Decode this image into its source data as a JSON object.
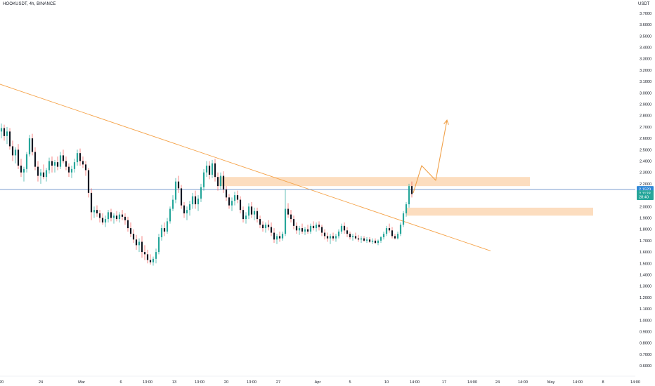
{
  "header": {
    "symbol": "HOOKUSDT, 4h, BINANCE",
    "currency": "USDT"
  },
  "colors": {
    "up_candle": "#26a69a",
    "down_candle": "#ef5350",
    "body_dark": "#131722",
    "trendline": "#f5a34a",
    "zone_fill": "#fcd9b8",
    "arrow": "#f0a048",
    "price_line": "#4f7ebf",
    "price_tag": "#2f88d6",
    "countdown_tag": "#26a69a"
  },
  "chart_data": {
    "type": "candlestick",
    "title": "HOOKUSDT, 4h, BINANCE",
    "y_unit": "USDT",
    "ylim": [
      0.45,
      3.85
    ],
    "y_ticks": [
      "0.5000",
      "0.6000",
      "0.7000",
      "0.8000",
      "0.9000",
      "1.0000",
      "1.1000",
      "1.2000",
      "1.3000",
      "1.4000",
      "1.5000",
      "1.6000",
      "1.7000",
      "1.8000",
      "1.9000",
      "2.0000",
      "2.1000",
      "2.2000",
      "2.3000",
      "2.4000",
      "2.5000",
      "2.6000",
      "2.7000",
      "2.8000",
      "2.9000",
      "3.0000",
      "3.1000",
      "3.2000",
      "3.3000",
      "3.4000",
      "3.5000",
      "3.6000",
      "3.7000",
      "3.8000"
    ],
    "x_ticks": [
      {
        "label": "20",
        "x": -8
      },
      {
        "label": "24",
        "x": 20
      },
      {
        "label": "Mar",
        "x": 49
      },
      {
        "label": "6",
        "x": 77
      },
      {
        "label": "13:00",
        "x": 96
      },
      {
        "label": "13",
        "x": 115
      },
      {
        "label": "13:00",
        "x": 133
      },
      {
        "label": "20",
        "x": 152
      },
      {
        "label": "13:00",
        "x": 170
      },
      {
        "label": "27",
        "x": 189
      },
      {
        "label": "Apr",
        "x": 217
      },
      {
        "label": "5",
        "x": 240
      },
      {
        "label": "10",
        "x": 266
      },
      {
        "label": "14:00",
        "x": 286
      },
      {
        "label": "17",
        "x": 307
      },
      {
        "label": "14:00",
        "x": 327
      },
      {
        "label": "24",
        "x": 345
      },
      {
        "label": "14:00",
        "x": 363
      },
      {
        "label": "May",
        "x": 383
      },
      {
        "label": "14:00",
        "x": 402
      },
      {
        "label": "8",
        "x": 420
      },
      {
        "label": "14:00",
        "x": 443
      },
      {
        "label": "15",
        "x": 459
      }
    ],
    "x_range": [
      -10,
      470
    ],
    "candles": [
      {
        "x": -8,
        "o": 2.66,
        "h": 2.73,
        "l": 2.6,
        "c": 2.69
      },
      {
        "x": -6,
        "o": 2.69,
        "h": 2.72,
        "l": 2.58,
        "c": 2.62
      },
      {
        "x": -4,
        "o": 2.62,
        "h": 2.7,
        "l": 2.55,
        "c": 2.66
      },
      {
        "x": -2,
        "o": 2.66,
        "h": 2.69,
        "l": 2.5,
        "c": 2.53
      },
      {
        "x": 0,
        "o": 2.53,
        "h": 2.58,
        "l": 2.4,
        "c": 2.45
      },
      {
        "x": 2,
        "o": 2.45,
        "h": 2.52,
        "l": 2.38,
        "c": 2.5
      },
      {
        "x": 4,
        "o": 2.5,
        "h": 2.55,
        "l": 2.33,
        "c": 2.36
      },
      {
        "x": 6,
        "o": 2.36,
        "h": 2.42,
        "l": 2.26,
        "c": 2.3
      },
      {
        "x": 8,
        "o": 2.3,
        "h": 2.35,
        "l": 2.22,
        "c": 2.33
      },
      {
        "x": 10,
        "o": 2.33,
        "h": 2.48,
        "l": 2.3,
        "c": 2.46
      },
      {
        "x": 12,
        "o": 2.46,
        "h": 2.63,
        "l": 2.44,
        "c": 2.6
      },
      {
        "x": 14,
        "o": 2.6,
        "h": 2.64,
        "l": 2.45,
        "c": 2.48
      },
      {
        "x": 16,
        "o": 2.48,
        "h": 2.52,
        "l": 2.32,
        "c": 2.35
      },
      {
        "x": 18,
        "o": 2.35,
        "h": 2.4,
        "l": 2.22,
        "c": 2.27
      },
      {
        "x": 20,
        "o": 2.27,
        "h": 2.33,
        "l": 2.2,
        "c": 2.3
      },
      {
        "x": 22,
        "o": 2.3,
        "h": 2.37,
        "l": 2.24,
        "c": 2.26
      },
      {
        "x": 24,
        "o": 2.26,
        "h": 2.34,
        "l": 2.22,
        "c": 2.32
      },
      {
        "x": 26,
        "o": 2.32,
        "h": 2.43,
        "l": 2.29,
        "c": 2.4
      },
      {
        "x": 28,
        "o": 2.4,
        "h": 2.44,
        "l": 2.3,
        "c": 2.36
      },
      {
        "x": 30,
        "o": 2.36,
        "h": 2.41,
        "l": 2.3,
        "c": 2.39
      },
      {
        "x": 32,
        "o": 2.39,
        "h": 2.44,
        "l": 2.32,
        "c": 2.35
      },
      {
        "x": 34,
        "o": 2.35,
        "h": 2.48,
        "l": 2.33,
        "c": 2.45
      },
      {
        "x": 36,
        "o": 2.45,
        "h": 2.5,
        "l": 2.38,
        "c": 2.4
      },
      {
        "x": 38,
        "o": 2.4,
        "h": 2.44,
        "l": 2.32,
        "c": 2.35
      },
      {
        "x": 40,
        "o": 2.35,
        "h": 2.38,
        "l": 2.26,
        "c": 2.3
      },
      {
        "x": 42,
        "o": 2.3,
        "h": 2.36,
        "l": 2.25,
        "c": 2.33
      },
      {
        "x": 44,
        "o": 2.33,
        "h": 2.42,
        "l": 2.3,
        "c": 2.39
      },
      {
        "x": 46,
        "o": 2.39,
        "h": 2.5,
        "l": 2.36,
        "c": 2.47
      },
      {
        "x": 48,
        "o": 2.47,
        "h": 2.51,
        "l": 2.36,
        "c": 2.4
      },
      {
        "x": 50,
        "o": 2.4,
        "h": 2.44,
        "l": 2.34,
        "c": 2.37
      },
      {
        "x": 52,
        "o": 2.37,
        "h": 2.4,
        "l": 2.27,
        "c": 2.32
      },
      {
        "x": 54,
        "o": 2.32,
        "h": 2.34,
        "l": 2.08,
        "c": 2.12
      },
      {
        "x": 56,
        "o": 2.12,
        "h": 2.16,
        "l": 1.88,
        "c": 1.95
      },
      {
        "x": 58,
        "o": 1.95,
        "h": 2.0,
        "l": 1.9,
        "c": 1.97
      },
      {
        "x": 60,
        "o": 1.97,
        "h": 2.01,
        "l": 1.91,
        "c": 1.94
      },
      {
        "x": 62,
        "o": 1.94,
        "h": 1.97,
        "l": 1.86,
        "c": 1.9
      },
      {
        "x": 64,
        "o": 1.9,
        "h": 1.94,
        "l": 1.84,
        "c": 1.86
      },
      {
        "x": 66,
        "o": 1.86,
        "h": 1.92,
        "l": 1.82,
        "c": 1.89
      },
      {
        "x": 68,
        "o": 1.89,
        "h": 1.97,
        "l": 1.86,
        "c": 1.95
      },
      {
        "x": 70,
        "o": 1.95,
        "h": 1.98,
        "l": 1.87,
        "c": 1.9
      },
      {
        "x": 72,
        "o": 1.9,
        "h": 1.94,
        "l": 1.85,
        "c": 1.92
      },
      {
        "x": 74,
        "o": 1.92,
        "h": 1.96,
        "l": 1.87,
        "c": 1.89
      },
      {
        "x": 76,
        "o": 1.89,
        "h": 1.95,
        "l": 1.86,
        "c": 1.93
      },
      {
        "x": 78,
        "o": 1.93,
        "h": 1.97,
        "l": 1.88,
        "c": 1.91
      },
      {
        "x": 80,
        "o": 1.91,
        "h": 1.94,
        "l": 1.84,
        "c": 1.88
      },
      {
        "x": 82,
        "o": 1.88,
        "h": 1.91,
        "l": 1.78,
        "c": 1.81
      },
      {
        "x": 84,
        "o": 1.81,
        "h": 1.86,
        "l": 1.73,
        "c": 1.76
      },
      {
        "x": 86,
        "o": 1.76,
        "h": 1.8,
        "l": 1.68,
        "c": 1.71
      },
      {
        "x": 88,
        "o": 1.71,
        "h": 1.75,
        "l": 1.62,
        "c": 1.66
      },
      {
        "x": 90,
        "o": 1.66,
        "h": 1.72,
        "l": 1.6,
        "c": 1.69
      },
      {
        "x": 92,
        "o": 1.69,
        "h": 1.74,
        "l": 1.55,
        "c": 1.6
      },
      {
        "x": 94,
        "o": 1.6,
        "h": 1.66,
        "l": 1.53,
        "c": 1.58
      },
      {
        "x": 96,
        "o": 1.58,
        "h": 1.62,
        "l": 1.5,
        "c": 1.53
      },
      {
        "x": 98,
        "o": 1.53,
        "h": 1.58,
        "l": 1.49,
        "c": 1.51
      },
      {
        "x": 100,
        "o": 1.51,
        "h": 1.56,
        "l": 1.48,
        "c": 1.54
      },
      {
        "x": 102,
        "o": 1.54,
        "h": 1.63,
        "l": 1.5,
        "c": 1.6
      },
      {
        "x": 104,
        "o": 1.6,
        "h": 1.76,
        "l": 1.58,
        "c": 1.73
      },
      {
        "x": 106,
        "o": 1.73,
        "h": 1.84,
        "l": 1.7,
        "c": 1.81
      },
      {
        "x": 108,
        "o": 1.81,
        "h": 1.86,
        "l": 1.74,
        "c": 1.78
      },
      {
        "x": 110,
        "o": 1.78,
        "h": 1.9,
        "l": 1.76,
        "c": 1.87
      },
      {
        "x": 112,
        "o": 1.87,
        "h": 2.0,
        "l": 1.85,
        "c": 1.98
      },
      {
        "x": 114,
        "o": 1.98,
        "h": 2.1,
        "l": 1.96,
        "c": 2.06
      },
      {
        "x": 116,
        "o": 2.06,
        "h": 2.25,
        "l": 2.03,
        "c": 2.22
      },
      {
        "x": 118,
        "o": 2.22,
        "h": 2.27,
        "l": 2.12,
        "c": 2.16
      },
      {
        "x": 120,
        "o": 2.16,
        "h": 2.19,
        "l": 1.98,
        "c": 2.01
      },
      {
        "x": 122,
        "o": 2.01,
        "h": 2.04,
        "l": 1.9,
        "c": 1.94
      },
      {
        "x": 124,
        "o": 1.94,
        "h": 2.0,
        "l": 1.88,
        "c": 1.97
      },
      {
        "x": 126,
        "o": 1.97,
        "h": 2.05,
        "l": 1.92,
        "c": 2.02
      },
      {
        "x": 128,
        "o": 2.02,
        "h": 2.12,
        "l": 1.98,
        "c": 2.09
      },
      {
        "x": 130,
        "o": 2.09,
        "h": 2.14,
        "l": 1.98,
        "c": 2.02
      },
      {
        "x": 132,
        "o": 2.02,
        "h": 2.1,
        "l": 1.96,
        "c": 2.07
      },
      {
        "x": 134,
        "o": 2.07,
        "h": 2.2,
        "l": 2.04,
        "c": 2.17
      },
      {
        "x": 136,
        "o": 2.17,
        "h": 2.33,
        "l": 2.14,
        "c": 2.3
      },
      {
        "x": 138,
        "o": 2.3,
        "h": 2.4,
        "l": 2.26,
        "c": 2.36
      },
      {
        "x": 140,
        "o": 2.36,
        "h": 2.4,
        "l": 2.24,
        "c": 2.28
      },
      {
        "x": 142,
        "o": 2.28,
        "h": 2.41,
        "l": 2.25,
        "c": 2.38
      },
      {
        "x": 144,
        "o": 2.38,
        "h": 2.42,
        "l": 2.22,
        "c": 2.26
      },
      {
        "x": 146,
        "o": 2.26,
        "h": 2.3,
        "l": 2.14,
        "c": 2.18
      },
      {
        "x": 148,
        "o": 2.18,
        "h": 2.3,
        "l": 2.15,
        "c": 2.27
      },
      {
        "x": 150,
        "o": 2.27,
        "h": 2.31,
        "l": 2.12,
        "c": 2.15
      },
      {
        "x": 152,
        "o": 2.15,
        "h": 2.18,
        "l": 2.05,
        "c": 2.08
      },
      {
        "x": 154,
        "o": 2.08,
        "h": 2.11,
        "l": 1.98,
        "c": 2.01
      },
      {
        "x": 156,
        "o": 2.01,
        "h": 2.08,
        "l": 1.96,
        "c": 2.05
      },
      {
        "x": 158,
        "o": 2.05,
        "h": 2.13,
        "l": 2.01,
        "c": 2.1
      },
      {
        "x": 160,
        "o": 2.1,
        "h": 2.14,
        "l": 2.03,
        "c": 2.06
      },
      {
        "x": 162,
        "o": 2.06,
        "h": 2.09,
        "l": 1.94,
        "c": 1.97
      },
      {
        "x": 164,
        "o": 1.97,
        "h": 2.0,
        "l": 1.86,
        "c": 1.89
      },
      {
        "x": 166,
        "o": 1.89,
        "h": 1.95,
        "l": 1.85,
        "c": 1.92
      },
      {
        "x": 168,
        "o": 1.92,
        "h": 2.03,
        "l": 1.89,
        "c": 2.0
      },
      {
        "x": 170,
        "o": 2.0,
        "h": 2.04,
        "l": 1.9,
        "c": 1.93
      },
      {
        "x": 172,
        "o": 1.93,
        "h": 1.99,
        "l": 1.88,
        "c": 1.96
      },
      {
        "x": 174,
        "o": 1.96,
        "h": 1.99,
        "l": 1.86,
        "c": 1.89
      },
      {
        "x": 176,
        "o": 1.89,
        "h": 1.92,
        "l": 1.81,
        "c": 1.84
      },
      {
        "x": 178,
        "o": 1.84,
        "h": 1.87,
        "l": 1.78,
        "c": 1.81
      },
      {
        "x": 180,
        "o": 1.81,
        "h": 1.86,
        "l": 1.77,
        "c": 1.84
      },
      {
        "x": 182,
        "o": 1.84,
        "h": 1.88,
        "l": 1.79,
        "c": 1.82
      },
      {
        "x": 184,
        "o": 1.82,
        "h": 1.86,
        "l": 1.74,
        "c": 1.77
      },
      {
        "x": 186,
        "o": 1.77,
        "h": 1.81,
        "l": 1.68,
        "c": 1.71
      },
      {
        "x": 188,
        "o": 1.71,
        "h": 1.76,
        "l": 1.67,
        "c": 1.74
      },
      {
        "x": 190,
        "o": 1.74,
        "h": 1.78,
        "l": 1.69,
        "c": 1.72
      },
      {
        "x": 192,
        "o": 1.72,
        "h": 1.78,
        "l": 1.7,
        "c": 1.76
      },
      {
        "x": 194,
        "o": 1.76,
        "h": 2.15,
        "l": 1.74,
        "c": 1.98
      },
      {
        "x": 196,
        "o": 1.98,
        "h": 2.03,
        "l": 1.9,
        "c": 1.93
      },
      {
        "x": 198,
        "o": 1.93,
        "h": 1.97,
        "l": 1.86,
        "c": 1.89
      },
      {
        "x": 200,
        "o": 1.89,
        "h": 1.92,
        "l": 1.8,
        "c": 1.83
      },
      {
        "x": 202,
        "o": 1.83,
        "h": 1.86,
        "l": 1.76,
        "c": 1.79
      },
      {
        "x": 204,
        "o": 1.79,
        "h": 1.83,
        "l": 1.75,
        "c": 1.81
      },
      {
        "x": 206,
        "o": 1.81,
        "h": 1.85,
        "l": 1.76,
        "c": 1.78
      },
      {
        "x": 208,
        "o": 1.78,
        "h": 1.82,
        "l": 1.75,
        "c": 1.8
      },
      {
        "x": 210,
        "o": 1.8,
        "h": 1.84,
        "l": 1.76,
        "c": 1.78
      },
      {
        "x": 212,
        "o": 1.78,
        "h": 1.85,
        "l": 1.76,
        "c": 1.83
      },
      {
        "x": 214,
        "o": 1.83,
        "h": 1.87,
        "l": 1.79,
        "c": 1.81
      },
      {
        "x": 216,
        "o": 1.81,
        "h": 1.86,
        "l": 1.78,
        "c": 1.84
      },
      {
        "x": 218,
        "o": 1.84,
        "h": 1.87,
        "l": 1.79,
        "c": 1.82
      },
      {
        "x": 220,
        "o": 1.82,
        "h": 1.84,
        "l": 1.74,
        "c": 1.77
      },
      {
        "x": 222,
        "o": 1.77,
        "h": 1.8,
        "l": 1.71,
        "c": 1.74
      },
      {
        "x": 224,
        "o": 1.74,
        "h": 1.77,
        "l": 1.69,
        "c": 1.72
      },
      {
        "x": 226,
        "o": 1.72,
        "h": 1.76,
        "l": 1.67,
        "c": 1.74
      },
      {
        "x": 228,
        "o": 1.74,
        "h": 1.77,
        "l": 1.7,
        "c": 1.72
      },
      {
        "x": 230,
        "o": 1.72,
        "h": 1.76,
        "l": 1.69,
        "c": 1.74
      },
      {
        "x": 232,
        "o": 1.74,
        "h": 1.8,
        "l": 1.72,
        "c": 1.78
      },
      {
        "x": 234,
        "o": 1.78,
        "h": 1.85,
        "l": 1.76,
        "c": 1.83
      },
      {
        "x": 236,
        "o": 1.83,
        "h": 1.86,
        "l": 1.76,
        "c": 1.79
      },
      {
        "x": 238,
        "o": 1.79,
        "h": 1.82,
        "l": 1.73,
        "c": 1.76
      },
      {
        "x": 240,
        "o": 1.76,
        "h": 1.78,
        "l": 1.71,
        "c": 1.73
      },
      {
        "x": 242,
        "o": 1.73,
        "h": 1.76,
        "l": 1.7,
        "c": 1.74
      },
      {
        "x": 244,
        "o": 1.74,
        "h": 1.77,
        "l": 1.71,
        "c": 1.72
      },
      {
        "x": 246,
        "o": 1.72,
        "h": 1.75,
        "l": 1.69,
        "c": 1.71
      },
      {
        "x": 248,
        "o": 1.71,
        "h": 1.74,
        "l": 1.68,
        "c": 1.72
      },
      {
        "x": 250,
        "o": 1.72,
        "h": 1.74,
        "l": 1.69,
        "c": 1.7
      },
      {
        "x": 252,
        "o": 1.7,
        "h": 1.73,
        "l": 1.68,
        "c": 1.71
      },
      {
        "x": 254,
        "o": 1.71,
        "h": 1.73,
        "l": 1.68,
        "c": 1.69
      },
      {
        "x": 256,
        "o": 1.69,
        "h": 1.72,
        "l": 1.67,
        "c": 1.7
      },
      {
        "x": 258,
        "o": 1.7,
        "h": 1.72,
        "l": 1.67,
        "c": 1.68
      },
      {
        "x": 260,
        "o": 1.68,
        "h": 1.71,
        "l": 1.66,
        "c": 1.7
      },
      {
        "x": 262,
        "o": 1.7,
        "h": 1.74,
        "l": 1.68,
        "c": 1.73
      },
      {
        "x": 264,
        "o": 1.73,
        "h": 1.78,
        "l": 1.71,
        "c": 1.76
      },
      {
        "x": 266,
        "o": 1.76,
        "h": 1.83,
        "l": 1.74,
        "c": 1.81
      },
      {
        "x": 268,
        "o": 1.81,
        "h": 1.85,
        "l": 1.77,
        "c": 1.79
      },
      {
        "x": 270,
        "o": 1.79,
        "h": 1.82,
        "l": 1.72,
        "c": 1.74
      },
      {
        "x": 272,
        "o": 1.74,
        "h": 1.76,
        "l": 1.71,
        "c": 1.72
      },
      {
        "x": 274,
        "o": 1.72,
        "h": 1.78,
        "l": 1.71,
        "c": 1.76
      },
      {
        "x": 276,
        "o": 1.76,
        "h": 1.86,
        "l": 1.74,
        "c": 1.84
      },
      {
        "x": 278,
        "o": 1.84,
        "h": 1.96,
        "l": 1.82,
        "c": 1.94
      },
      {
        "x": 280,
        "o": 1.94,
        "h": 2.04,
        "l": 1.91,
        "c": 2.02
      },
      {
        "x": 282,
        "o": 2.02,
        "h": 2.2,
        "l": 1.99,
        "c": 2.18
      },
      {
        "x": 284,
        "o": 2.18,
        "h": 2.22,
        "l": 2.08,
        "c": 2.11
      }
    ],
    "annotations": {
      "trendline": [
        {
          "x": -10,
          "p": 3.08
        },
        {
          "x": 340,
          "p": 1.61
        }
      ],
      "resistance_zone": {
        "x_start": 147,
        "x_end": 368,
        "top": 2.26,
        "bottom": 2.18
      },
      "support_zone": {
        "x_start": 280,
        "x_end": 413,
        "top": 1.99,
        "bottom": 1.92
      },
      "projection_arrow": [
        {
          "x": 285,
          "p": 2.12
        },
        {
          "x": 291,
          "p": 2.36
        },
        {
          "x": 301,
          "p": 2.23
        },
        {
          "x": 309,
          "p": 2.76
        }
      ],
      "current_price_line": 2.15
    },
    "price_tags": [
      {
        "text": "2.1520",
        "p": 2.152,
        "kind": "price"
      },
      {
        "text": "2.1128",
        "p": 2.115,
        "kind": "countdown"
      },
      {
        "text": "28:40",
        "p": 2.085,
        "kind": "countdown"
      }
    ]
  }
}
